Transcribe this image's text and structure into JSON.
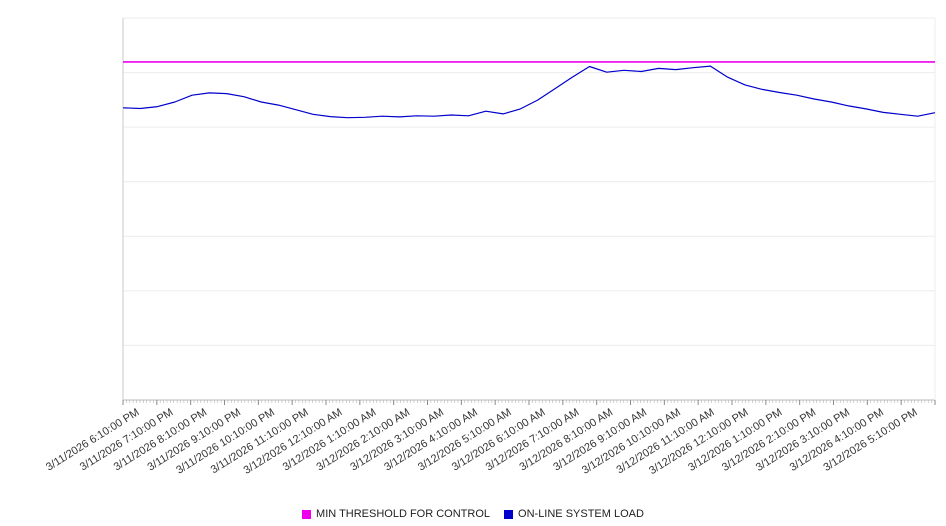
{
  "chart_data": {
    "type": "line",
    "title": "",
    "xlabel": "",
    "ylabel": "",
    "ylim": [
      0,
      100
    ],
    "grid": "horizontal",
    "legend_position": "bottom",
    "x_categories": [
      "3/11/2026 6:10:00 PM",
      "3/11/2026 7:10:00 PM",
      "3/11/2026 8:10:00 PM",
      "3/11/2026 9:10:00 PM",
      "3/11/2026 10:10:00 PM",
      "3/11/2026 11:10:00 PM",
      "3/12/2026 12:10:00 AM",
      "3/12/2026 1:10:00 AM",
      "3/12/2026 2:10:00 AM",
      "3/12/2026 3:10:00 AM",
      "3/12/2026 4:10:00 AM",
      "3/12/2026 5:10:00 AM",
      "3/12/2026 6:10:00 AM",
      "3/12/2026 7:10:00 AM",
      "3/12/2026 8:10:00 AM",
      "3/12/2026 9:10:00 AM",
      "3/12/2026 10:10:00 AM",
      "3/12/2026 11:10:00 AM",
      "3/12/2026 12:10:00 PM",
      "3/12/2026 1:10:00 PM",
      "3/12/2026 2:10:00 PM",
      "3/12/2026 3:10:00 PM",
      "3/12/2026 4:10:00 PM",
      "3/12/2026 5:10:00 PM"
    ],
    "series": [
      {
        "name": "MIN THRESHOLD FOR CONTROL",
        "color": "#ee00ee",
        "values": [
          88.5,
          88.5
        ]
      },
      {
        "name": "ON-LINE SYSTEM LOAD",
        "color": "#0000cc",
        "values": [
          76.5,
          76.3,
          76.8,
          78.0,
          79.8,
          80.4,
          80.2,
          79.4,
          78.0,
          77.2,
          76.0,
          74.8,
          74.2,
          73.9,
          74.0,
          74.3,
          74.1,
          74.4,
          74.3,
          74.6,
          74.4,
          75.6,
          74.9,
          76.2,
          78.5,
          81.5,
          84.5,
          87.3,
          85.8,
          86.3,
          86.0,
          86.8,
          86.5,
          87.0,
          87.4,
          84.5,
          82.5,
          81.3,
          80.5,
          79.8,
          78.8,
          78.0,
          77.0,
          76.2,
          75.3,
          74.8,
          74.3,
          75.2
        ]
      }
    ]
  }
}
